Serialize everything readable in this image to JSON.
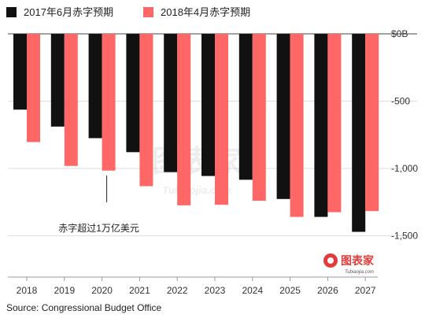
{
  "chart_data": {
    "type": "bar",
    "categories": [
      "2018",
      "2019",
      "2020",
      "2021",
      "2022",
      "2023",
      "2024",
      "2025",
      "2026",
      "2027"
    ],
    "series": [
      {
        "name": "2017年6月赤字预期",
        "color": "#111111",
        "values": [
          -563,
          -689,
          -775,
          -879,
          -1027,
          -1056,
          -1084,
          -1227,
          -1360,
          -1471
        ]
      },
      {
        "name": "2018年4月赤字预期",
        "color": "#ff6666",
        "values": [
          -804,
          -981,
          -1016,
          -1132,
          -1274,
          -1270,
          -1240,
          -1360,
          -1325,
          -1317
        ]
      }
    ],
    "y_ticks": [
      {
        "value": 0,
        "label": "$0B"
      },
      {
        "value": -500,
        "label": "-500"
      },
      {
        "value": -1000,
        "label": "-1,000"
      },
      {
        "value": -1500,
        "label": "-1,500"
      }
    ],
    "ylim": [
      -1500,
      0
    ],
    "grid": true,
    "annotation": {
      "text": "赤字超过1万亿美元",
      "category": "2020"
    },
    "source": "Source: Congressional Budget Office",
    "watermark": {
      "text": "图表家",
      "subtext": "Tubiaojia.com"
    },
    "logo": {
      "text": "图表家",
      "subtext": "Tubiaojia.com"
    }
  }
}
